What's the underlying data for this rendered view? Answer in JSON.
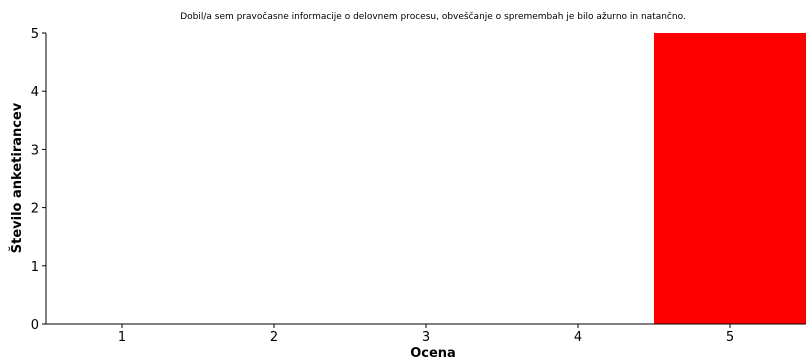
{
  "chart_data": {
    "type": "bar",
    "title": "Dobil/a sem pravočasne informacije o delovnem procesu, obveščanje o spremembah je bilo ažurno in natančno.",
    "xlabel": "Ocena",
    "ylabel": "Število anketirancev",
    "categories": [
      "1",
      "2",
      "3",
      "4",
      "5"
    ],
    "values": [
      0,
      0,
      0,
      0,
      5
    ],
    "ylim": [
      0,
      5
    ],
    "yticks": [
      "0",
      "1",
      "2",
      "3",
      "4",
      "5"
    ],
    "grid": false,
    "legend": "none",
    "colors": {
      "bar": "#ff0000",
      "axis": "#000000",
      "background": "#ffffff"
    }
  }
}
